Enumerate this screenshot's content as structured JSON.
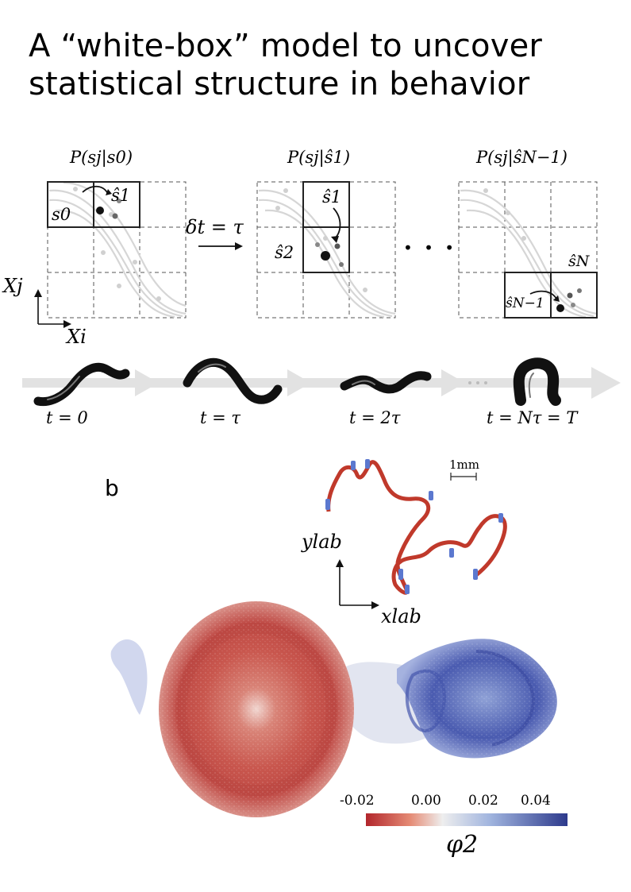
{
  "title": {
    "line1": "A “white-box” model to uncover",
    "line2": "statistical structure in behavior"
  },
  "panel_a": {
    "grids": [
      {
        "header": "P(sj|s0)"
      },
      {
        "header": "P(sj|ŝ1)"
      },
      {
        "header": "P(sj|ŝN−1)"
      }
    ],
    "labels": {
      "s0": "s0",
      "s1_hat": "ŝ1",
      "s2_hat": "ŝ2",
      "sN_hat": "ŝN",
      "sN1_hat": "ŝN−1",
      "delta_t": "δt = τ",
      "ellipsis": "• • •",
      "axis_x": "Xi",
      "axis_y": "Xj"
    },
    "time_labels": [
      "t = 0",
      "t = τ",
      "t = 2τ",
      "t = Nτ = T"
    ]
  },
  "panel_b": {
    "label": "b",
    "scale_bar": "1mm",
    "axis_x": "xlab",
    "axis_y": "ylab",
    "colorbar": {
      "ticks": [
        "-0.02",
        "0.00",
        "0.02",
        "0.04"
      ],
      "label": "φ2",
      "low_color": "#b2262c",
      "mid_color": "#eeeeee",
      "high_color": "#2d3a8c"
    }
  }
}
